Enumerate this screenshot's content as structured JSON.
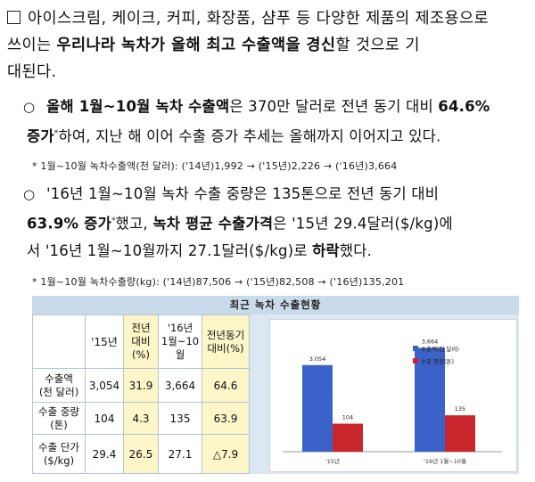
{
  "paragraph1": {
    "marker": "□",
    "line1": "아이스크림, 케이크, 커피, 화장품, 샴푸 등 다양한 제품의 제조용으로",
    "line2_pre": "쓰이는 ",
    "line2_bold": "우리나라 녹차가 올해 최고 수출액을 경신",
    "line2_post": "할 것으로 기",
    "line3": "대된다."
  },
  "point1": {
    "marker": "○",
    "bold1": "올해 1월~10월 녹차 수출액",
    "text1": "은 370만 달러로 전년 동기 대비 ",
    "bold2": "64.6%",
    "bold3": "증가",
    "sup": "*",
    "text2": "하여, 지난 해 이어 수출 증가 추세는 올해까지 이어지고 있다."
  },
  "note1": "* 1월~10월 녹차수출액(천 달러): ('14년)1,992 → ('15년)2,226 → ('16년)3,664",
  "point2": {
    "marker": "○",
    "text1": "'16년 1월~10월 녹차 수출 중량은 135톤으로 전년 동기 대비",
    "bold1": "63.9% 증가",
    "sup": "*",
    "text2": "했고, ",
    "bold2": "녹차 평균 수출가격",
    "text3": "은 '15년 29.4달러($/kg)에",
    "text4": "서 '16년 1월~10월까지 27.1달러($/kg)로 ",
    "bold3": "하락",
    "text5": "했다."
  },
  "note2": "* 1월~10월 녹차수출량(kg): ('14년)87,506 → ('15년)82,508 → ('16년)135,201",
  "table": {
    "title": "최근 녹차 수출현황",
    "headers": {
      "y15": "'15년",
      "prev_ratio_1": "전년",
      "prev_ratio_2": "대비(%)",
      "y16_1": "'16년",
      "y16_2": "1월~10월",
      "same_ratio_1": "전년동기",
      "same_ratio_2": "대비(%)"
    },
    "rows": [
      {
        "label1": "수출액",
        "label2": "(천 달러)",
        "y15": "3,054",
        "prev": "31.9",
        "y16": "3,664",
        "same": "64.6"
      },
      {
        "label1": "수출 중량",
        "label2": "(톤)",
        "y15": "104",
        "prev": "4.3",
        "y16": "135",
        "same": "63.9"
      },
      {
        "label1": "수출 단가",
        "label2": "($/kg)",
        "y15": "29.4",
        "prev": "26.5",
        "y16": "27.1",
        "same": "△7.9"
      }
    ]
  },
  "chart_data": {
    "type": "bar",
    "categories": [
      "'15년",
      "'16년 1월~10월"
    ],
    "series": [
      {
        "name": "수출액(천 달러)",
        "values": [
          3054,
          3664
        ],
        "labels": [
          "3,054",
          "3,664"
        ],
        "color": "#3a62c8"
      },
      {
        "name": "수출 중량(톤)",
        "values": [
          104,
          135
        ],
        "labels": [
          "104",
          "135"
        ],
        "color": "#c8262a"
      }
    ],
    "notes": "Two series on independent scales; weights drawn at a smaller scale as in the original."
  }
}
